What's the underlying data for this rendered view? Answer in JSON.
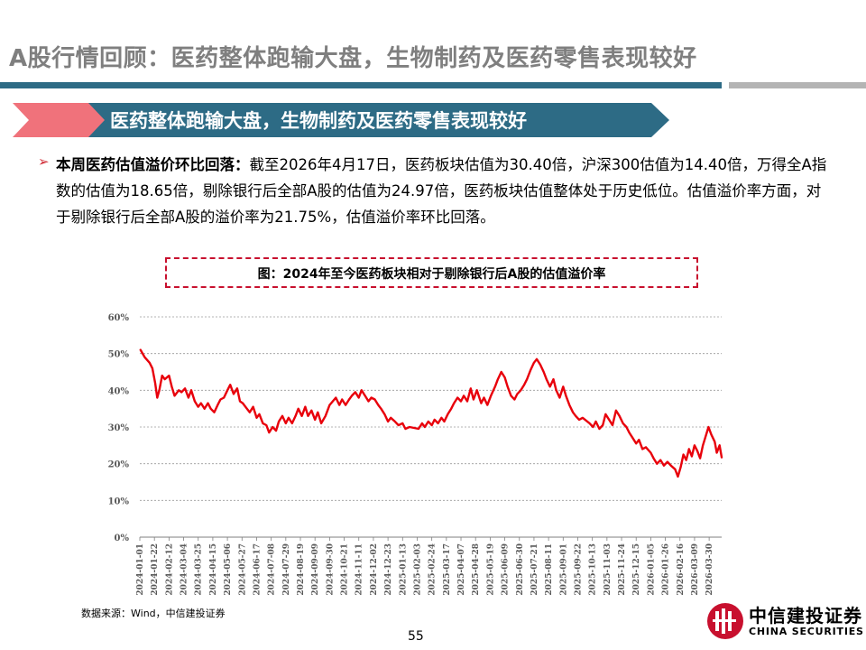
{
  "header": {
    "title": "A股行情回顾：医药整体跑输大盘，生物制药及医药零售表现较好"
  },
  "banner": {
    "text": "医药整体跑输大盘，生物制药及医药零售表现较好"
  },
  "bullet": {
    "marker": "➢",
    "lead": "本周医药估值溢价环比回落：",
    "body": "截至2026年4月17日，医药板块估值为30.40倍，沪深300估值为14.40倍，万得全A指数的估值为18.65倍，剔除银行后全部A股的估值为24.97倍，医药板块估值整体处于历史低位。估值溢价率方面，对于剔除银行后全部A股的溢价率为21.75%，估值溢价率环比回落。"
  },
  "chart": {
    "title": "图：2024年至今医药板块相对于剔除银行后A股的估值溢价率"
  },
  "chart_data": {
    "type": "line",
    "title": "图：2024年至今医药板块相对于剔除银行后A股的估值溢价率",
    "xlabel": "",
    "ylabel": "",
    "ylim": [
      0,
      60
    ],
    "yticks": [
      "0%",
      "10%",
      "20%",
      "30%",
      "40%",
      "50%",
      "60%"
    ],
    "grid": "horizontal dashed",
    "line_color": "#e8000b",
    "xticks": [
      "2024-01-01",
      "2024-01-22",
      "2024-02-12",
      "2024-03-04",
      "2024-03-25",
      "2024-04-15",
      "2024-05-06",
      "2024-05-27",
      "2024-06-17",
      "2024-07-08",
      "2024-07-29",
      "2024-08-19",
      "2024-09-09",
      "2024-09-30",
      "2024-10-21",
      "2024-11-11",
      "2024-12-02",
      "2024-12-23",
      "2025-01-13",
      "2025-02-03",
      "2025-02-24",
      "2025-03-17",
      "2025-04-07",
      "2025-04-28",
      "2025-05-19",
      "2025-06-09",
      "2025-06-30",
      "2025-07-21",
      "2025-08-11",
      "2025-09-01",
      "2025-09-22",
      "2025-10-13",
      "2025-11-03",
      "2025-11-24",
      "2025-12-15",
      "2026-01-05",
      "2026-01-26",
      "2026-02-16",
      "2026-03-09",
      "2026-03-30"
    ],
    "series": [
      {
        "values": [
          [
            "2024-01-02",
            51.0
          ],
          [
            "2024-01-08",
            49.0
          ],
          [
            "2024-01-15",
            47.5
          ],
          [
            "2024-01-19",
            46.0
          ],
          [
            "2024-01-23",
            42.0
          ],
          [
            "2024-01-26",
            38.0
          ],
          [
            "2024-01-29",
            40.0
          ],
          [
            "2024-02-02",
            44.0
          ],
          [
            "2024-02-06",
            43.0
          ],
          [
            "2024-02-12",
            44.0
          ],
          [
            "2024-02-16",
            41.0
          ],
          [
            "2024-02-20",
            38.5
          ],
          [
            "2024-02-26",
            40.0
          ],
          [
            "2024-03-01",
            39.5
          ],
          [
            "2024-03-06",
            40.5
          ],
          [
            "2024-03-11",
            38.0
          ],
          [
            "2024-03-15",
            40.0
          ],
          [
            "2024-03-20",
            37.0
          ],
          [
            "2024-03-25",
            35.5
          ],
          [
            "2024-03-29",
            36.5
          ],
          [
            "2024-04-03",
            35.0
          ],
          [
            "2024-04-08",
            36.5
          ],
          [
            "2024-04-12",
            35.0
          ],
          [
            "2024-04-17",
            34.0
          ],
          [
            "2024-04-22",
            36.0
          ],
          [
            "2024-04-26",
            37.5
          ],
          [
            "2024-05-01",
            38.0
          ],
          [
            "2024-05-06",
            40.0
          ],
          [
            "2024-05-10",
            41.5
          ],
          [
            "2024-05-15",
            39.0
          ],
          [
            "2024-05-20",
            40.5
          ],
          [
            "2024-05-24",
            37.0
          ],
          [
            "2024-05-28",
            36.5
          ],
          [
            "2024-06-03",
            35.0
          ],
          [
            "2024-06-07",
            34.0
          ],
          [
            "2024-06-12",
            35.5
          ],
          [
            "2024-06-17",
            32.5
          ],
          [
            "2024-06-21",
            33.5
          ],
          [
            "2024-06-26",
            31.0
          ],
          [
            "2024-07-01",
            30.5
          ],
          [
            "2024-07-05",
            28.5
          ],
          [
            "2024-07-10",
            30.0
          ],
          [
            "2024-07-15",
            29.0
          ],
          [
            "2024-07-19",
            31.5
          ],
          [
            "2024-07-24",
            33.0
          ],
          [
            "2024-07-29",
            31.0
          ],
          [
            "2024-08-02",
            32.5
          ],
          [
            "2024-08-07",
            31.0
          ],
          [
            "2024-08-12",
            33.0
          ],
          [
            "2024-08-16",
            35.0
          ],
          [
            "2024-08-21",
            33.0
          ],
          [
            "2024-08-26",
            35.5
          ],
          [
            "2024-08-30",
            33.0
          ],
          [
            "2024-09-04",
            34.5
          ],
          [
            "2024-09-09",
            32.0
          ],
          [
            "2024-09-13",
            34.0
          ],
          [
            "2024-09-18",
            31.0
          ],
          [
            "2024-09-24",
            33.0
          ],
          [
            "2024-09-30",
            36.0
          ],
          [
            "2024-10-09",
            38.0
          ],
          [
            "2024-10-14",
            36.0
          ],
          [
            "2024-10-18",
            37.5
          ],
          [
            "2024-10-23",
            36.0
          ],
          [
            "2024-10-28",
            37.5
          ],
          [
            "2024-11-01",
            38.5
          ],
          [
            "2024-11-06",
            39.5
          ],
          [
            "2024-11-11",
            38.0
          ],
          [
            "2024-11-15",
            40.0
          ],
          [
            "2024-11-20",
            38.5
          ],
          [
            "2024-11-25",
            37.0
          ],
          [
            "2024-11-29",
            38.0
          ],
          [
            "2024-12-04",
            37.5
          ],
          [
            "2024-12-09",
            36.0
          ],
          [
            "2024-12-13",
            35.0
          ],
          [
            "2024-12-18",
            33.5
          ],
          [
            "2024-12-23",
            31.5
          ],
          [
            "2024-12-27",
            32.5
          ],
          [
            "2025-01-02",
            31.5
          ],
          [
            "2025-01-07",
            30.5
          ],
          [
            "2025-01-13",
            31.0
          ],
          [
            "2025-01-17",
            29.5
          ],
          [
            "2025-01-23",
            30.0
          ],
          [
            "2025-02-05",
            29.5
          ],
          [
            "2025-02-10",
            31.0
          ],
          [
            "2025-02-14",
            30.0
          ],
          [
            "2025-02-19",
            31.5
          ],
          [
            "2025-02-24",
            30.5
          ],
          [
            "2025-02-28",
            32.0
          ],
          [
            "2025-03-05",
            31.0
          ],
          [
            "2025-03-10",
            32.5
          ],
          [
            "2025-03-14",
            31.5
          ],
          [
            "2025-03-19",
            33.5
          ],
          [
            "2025-03-24",
            35.0
          ],
          [
            "2025-03-28",
            36.5
          ],
          [
            "2025-04-02",
            38.0
          ],
          [
            "2025-04-07",
            37.0
          ],
          [
            "2025-04-11",
            38.5
          ],
          [
            "2025-04-16",
            37.0
          ],
          [
            "2025-04-21",
            40.5
          ],
          [
            "2025-04-25",
            37.5
          ],
          [
            "2025-04-30",
            40.0
          ],
          [
            "2025-05-06",
            36.5
          ],
          [
            "2025-05-10",
            38.0
          ],
          [
            "2025-05-15",
            36.0
          ],
          [
            "2025-05-20",
            38.5
          ],
          [
            "2025-05-26",
            41.0
          ],
          [
            "2025-05-30",
            43.0
          ],
          [
            "2025-06-04",
            45.0
          ],
          [
            "2025-06-09",
            43.5
          ],
          [
            "2025-06-13",
            41.0
          ],
          [
            "2025-06-18",
            38.5
          ],
          [
            "2025-06-23",
            37.5
          ],
          [
            "2025-06-27",
            39.0
          ],
          [
            "2025-07-02",
            40.0
          ],
          [
            "2025-07-07",
            41.5
          ],
          [
            "2025-07-11",
            43.0
          ],
          [
            "2025-07-16",
            45.5
          ],
          [
            "2025-07-21",
            47.5
          ],
          [
            "2025-07-25",
            48.5
          ],
          [
            "2025-07-30",
            47.0
          ],
          [
            "2025-08-04",
            45.0
          ],
          [
            "2025-08-08",
            43.0
          ],
          [
            "2025-08-13",
            41.0
          ],
          [
            "2025-08-18",
            43.0
          ],
          [
            "2025-08-22",
            40.0
          ],
          [
            "2025-08-27",
            38.0
          ],
          [
            "2025-09-01",
            41.0
          ],
          [
            "2025-09-05",
            38.5
          ],
          [
            "2025-09-10",
            36.0
          ],
          [
            "2025-09-15",
            34.0
          ],
          [
            "2025-09-19",
            33.0
          ],
          [
            "2025-09-24",
            32.0
          ],
          [
            "2025-09-29",
            32.5
          ],
          [
            "2025-10-09",
            31.0
          ],
          [
            "2025-10-14",
            30.0
          ],
          [
            "2025-10-18",
            31.5
          ],
          [
            "2025-10-23",
            29.5
          ],
          [
            "2025-10-28",
            30.5
          ],
          [
            "2025-11-01",
            33.5
          ],
          [
            "2025-11-06",
            32.0
          ],
          [
            "2025-11-11",
            30.5
          ],
          [
            "2025-11-16",
            34.5
          ],
          [
            "2025-11-21",
            33.0
          ],
          [
            "2025-11-26",
            31.0
          ],
          [
            "2025-12-01",
            30.0
          ],
          [
            "2025-12-05",
            28.5
          ],
          [
            "2025-12-10",
            27.0
          ],
          [
            "2025-12-15",
            25.5
          ],
          [
            "2025-12-19",
            26.5
          ],
          [
            "2025-12-24",
            24.0
          ],
          [
            "2025-12-29",
            24.5
          ],
          [
            "2026-01-05",
            23.0
          ],
          [
            "2026-01-09",
            21.5
          ],
          [
            "2026-01-14",
            20.0
          ],
          [
            "2026-01-19",
            21.0
          ],
          [
            "2026-01-24",
            19.5
          ],
          [
            "2026-01-29",
            20.5
          ],
          [
            "2026-02-03",
            19.5
          ],
          [
            "2026-02-09",
            18.5
          ],
          [
            "2026-02-13",
            16.5
          ],
          [
            "2026-02-17",
            19.0
          ],
          [
            "2026-02-21",
            22.5
          ],
          [
            "2026-02-25",
            21.0
          ],
          [
            "2026-03-01",
            24.0
          ],
          [
            "2026-03-05",
            22.0
          ],
          [
            "2026-03-09",
            25.0
          ],
          [
            "2026-03-13",
            23.5
          ],
          [
            "2026-03-17",
            21.5
          ],
          [
            "2026-03-21",
            25.0
          ],
          [
            "2026-03-25",
            27.5
          ],
          [
            "2026-03-29",
            30.0
          ],
          [
            "2026-04-02",
            28.0
          ],
          [
            "2026-04-07",
            26.0
          ],
          [
            "2026-04-10",
            23.0
          ],
          [
            "2026-04-14",
            25.0
          ],
          [
            "2026-04-17",
            21.75
          ]
        ]
      }
    ]
  },
  "source": {
    "text": "数据来源：Wind，中信建投证券"
  },
  "footer": {
    "page_number": "55",
    "logo_name": "中信建投证券",
    "logo_en": "CHINA SECURITIES"
  },
  "colors": {
    "title_gray": "#7f7f7f",
    "banner_red": "#f0727b",
    "banner_blue": "#2d6b85",
    "line_red": "#e8000b",
    "logo_red": "#c8102e"
  }
}
